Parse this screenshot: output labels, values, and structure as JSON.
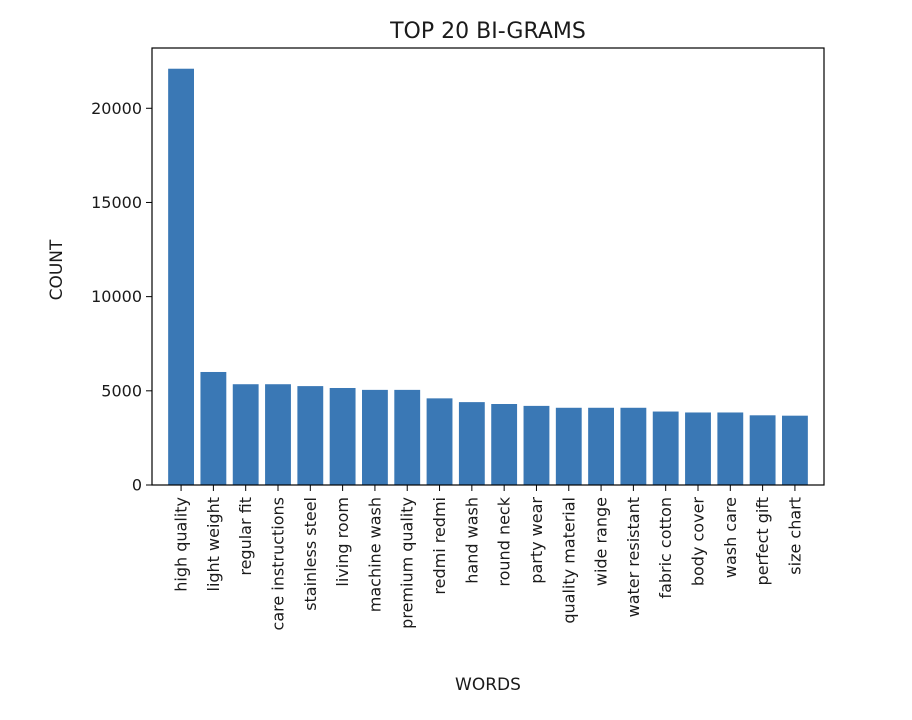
{
  "chart_data": {
    "type": "bar",
    "title": "TOP 20 BI-GRAMS",
    "xlabel": "WORDS",
    "ylabel": "COUNT",
    "categories": [
      "high quality",
      "light weight",
      "regular fit",
      "care instructions",
      "stainless steel",
      "living room",
      "machine wash",
      "premium quality",
      "redmi redmi",
      "hand wash",
      "round neck",
      "party wear",
      "quality material",
      "wide range",
      "water resistant",
      "fabric cotton",
      "body cover",
      "wash care",
      "perfect gift",
      "size chart"
    ],
    "values": [
      22100,
      6000,
      5350,
      5350,
      5250,
      5150,
      5050,
      5050,
      4600,
      4400,
      4300,
      4200,
      4100,
      4100,
      4100,
      3900,
      3850,
      3850,
      3700,
      3680
    ],
    "yticks": [
      0,
      5000,
      10000,
      15000,
      20000
    ],
    "ylim": [
      0,
      23200
    ],
    "grid": false,
    "bar_color": "#3a78b5"
  }
}
